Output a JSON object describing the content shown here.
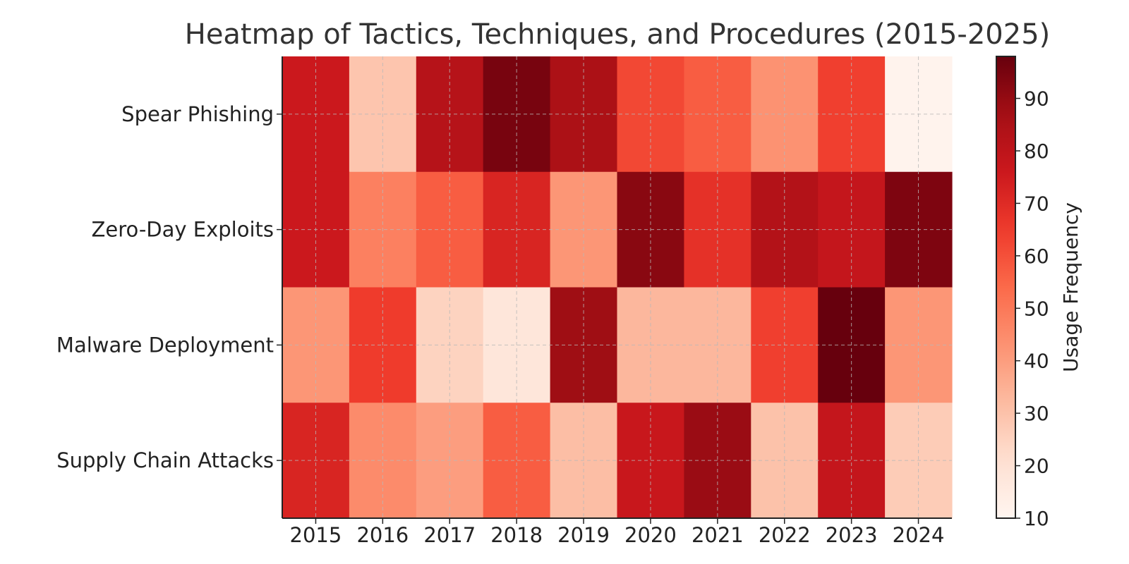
{
  "chart_data": {
    "type": "heatmap",
    "title": "Heatmap of Tactics, Techniques, and Procedures (2015-2025)",
    "xlabel": "",
    "ylabel": "",
    "x_categories": [
      "2015",
      "2016",
      "2017",
      "2018",
      "2019",
      "2020",
      "2021",
      "2022",
      "2023",
      "2024"
    ],
    "y_categories": [
      "Spear Phishing",
      "Zero-Day Exploits",
      "Malware Deployment",
      "Supply Chain Attacks"
    ],
    "values": [
      [
        76,
        29,
        82,
        95,
        85,
        62,
        57,
        43,
        64,
        11
      ],
      [
        76,
        48,
        57,
        72,
        42,
        92,
        68,
        83,
        78,
        94
      ],
      [
        42,
        65,
        25,
        18,
        88,
        33,
        33,
        64,
        98,
        42
      ],
      [
        72,
        45,
        40,
        57,
        31,
        77,
        89,
        30,
        78,
        27
      ]
    ],
    "colorbar": {
      "label": "Usage Frequency",
      "min": 10,
      "max": 98,
      "ticks": [
        "10",
        "20",
        "30",
        "40",
        "50",
        "60",
        "70",
        "80",
        "90"
      ],
      "colormap": "Reds"
    },
    "grid": true
  }
}
